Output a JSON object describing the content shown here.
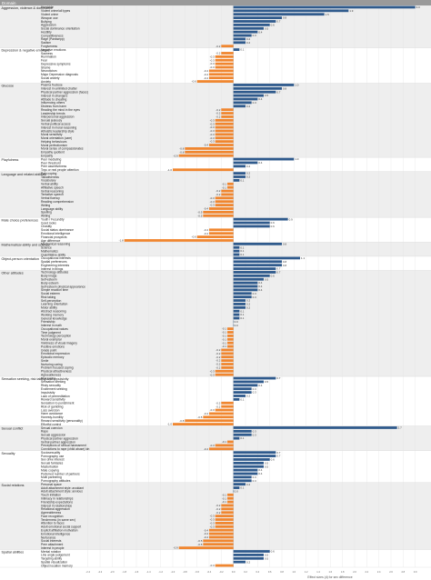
{
  "colors": {
    "positive": "#2f5a8c",
    "negative": "#f0862f",
    "header_bg": "#9a9a9a",
    "band_alt": "#eeeeee",
    "grid": "#e2e2e2",
    "text": "#222222",
    "value_text": "#333333"
  },
  "header": {
    "column_label": "Domain"
  },
  "chart_data": {
    "type": "bar",
    "orientation": "horizontal",
    "xlabel": "Effect sizes (d) for sex difference",
    "xlim": [
      -2.5,
      3.2
    ],
    "x_ticks": [
      "-2.4",
      "-2.2",
      "-2.0",
      "-1.8",
      "-1.6",
      "-1.4",
      "-1.2",
      "-1.0",
      "-0.8",
      "-0.6",
      "-0.4",
      "-0.2",
      "0.0",
      "0.2",
      "0.4",
      "0.6",
      "0.8",
      "1.0",
      "1.2",
      "1.4",
      "1.6",
      "1.8",
      "2.0",
      "2.2",
      "2.4",
      "2.6",
      "2.8",
      "3.0"
    ],
    "grid": true,
    "groups": [
      {
        "label": "Aggression, violence & dominance",
        "items": [
          {
            "label": "Homicide",
            "value": 3.0
          },
          {
            "label": "Violent crime/all types",
            "value": 1.9
          },
          {
            "label": "Violent crime",
            "value": 1.5
          },
          {
            "label": "Weapon use",
            "value": 0.8
          },
          {
            "label": "Bullying",
            "value": 0.7
          },
          {
            "label": "Aggression",
            "value": 0.6
          },
          {
            "label": "Social dominance orientation",
            "value": 0.5
          },
          {
            "label": "Hostility",
            "value": 0.4
          },
          {
            "label": "Competitiveness",
            "value": 0.3
          },
          {
            "label": "Rage (Panksepp)",
            "value": 0.2
          },
          {
            "label": "Sadism",
            "value": 0.2
          },
          {
            "label": "Forgiveness",
            "value": -0.2
          }
        ]
      },
      {
        "label": "Depression & negative emotions",
        "items": [
          {
            "label": "Negative emotions",
            "value": 0.1
          },
          {
            "label": "Sadness",
            "value": -0.2
          },
          {
            "label": "Rumination",
            "value": -0.3
          },
          {
            "label": "Fear",
            "value": -0.3
          },
          {
            "label": "Depressive symptoms",
            "value": -0.3
          },
          {
            "label": "Shame",
            "value": -0.3
          },
          {
            "label": "Neuroticism",
            "value": -0.4
          },
          {
            "label": "Major Depression diagnosis",
            "value": -0.4
          },
          {
            "label": "Social anxiety",
            "value": -0.4
          },
          {
            "label": "Anxiety",
            "value": -0.6
          }
        ]
      },
      {
        "label": "Glucose",
        "items": [
          {
            "label": "Plasma fructose",
            "value": 1.0
          },
          {
            "label": "Interest in unlimited chatter",
            "value": 0.8
          },
          {
            "label": "Physical partner aggression (faces)",
            "value": 0.7
          },
          {
            "label": "Interest in strangers",
            "value": 0.5
          },
          {
            "label": "Attitude to cheating",
            "value": 0.4
          },
          {
            "label": "Influencing others",
            "value": 0.3
          },
          {
            "label": "Distress from harm",
            "value": 0.2
          },
          {
            "label": "Reading the mind in the eyes",
            "value": -0.2
          },
          {
            "label": "Leadership trends",
            "value": -0.2
          },
          {
            "label": "Interpersonal aggression",
            "value": -0.2
          },
          {
            "label": "Sexual jealousy",
            "value": -0.3
          },
          {
            "label": "Verbal political access",
            "value": -0.3
          },
          {
            "label": "Interest in moral reasoning",
            "value": -0.3
          },
          {
            "label": "Altruistic leadership style",
            "value": -0.3
          },
          {
            "label": "Moral sensitivity",
            "value": -0.3
          },
          {
            "label": "Moral orientation (care)",
            "value": -0.3
          },
          {
            "label": "Helping behaviours",
            "value": -0.3
          },
          {
            "label": "Moral perfectionism",
            "value": -0.4
          },
          {
            "label": "Moral sense of compassionates",
            "value": -0.8
          },
          {
            "label": "Empathy quotient",
            "value": -0.8
          },
          {
            "label": "Empathy",
            "value": -0.9
          }
        ]
      },
      {
        "label": "Playfulness",
        "items": [
          {
            "label": "Peer mediating",
            "value": 1.0
          },
          {
            "label": "Peer threshold",
            "value": 0.4
          },
          {
            "label": "Peer assertiveness",
            "value": 0.2
          },
          {
            "label": "Toys or real people attention",
            "value": -1.0
          }
        ]
      },
      {
        "label": "Language and related abilities",
        "items": [
          {
            "label": "Pain coping",
            "value": 0.2
          },
          {
            "label": "Talkativeness",
            "value": 0.2
          },
          {
            "label": "Vocabulary",
            "value": 0.1
          },
          {
            "label": "Verbal ability",
            "value": -0.1
          },
          {
            "label": "Affiliative speech",
            "value": -0.1
          },
          {
            "label": "Verbal reasoning",
            "value": -0.2
          },
          {
            "label": "Tentative speech",
            "value": -0.2
          },
          {
            "label": "Verbal fluency",
            "value": -0.3
          },
          {
            "label": "Reading comprehension",
            "value": -0.3
          },
          {
            "label": "Writing",
            "value": -0.3
          },
          {
            "label": "Language ability",
            "value": -0.4
          },
          {
            "label": "Spelling",
            "value": -0.5
          },
          {
            "label": "Writing",
            "value": -0.5
          }
        ]
      },
      {
        "label": "Mate choice preferences",
        "items": [
          {
            "label": "Youth / Fecundity",
            "value": 0.9
          },
          {
            "label": "Good looks",
            "value": 0.6
          },
          {
            "label": "Chastity",
            "value": 0.6
          },
          {
            "label": "Social status dominance",
            "value": -0.4
          },
          {
            "label": "Emotional intelligence",
            "value": -0.4
          },
          {
            "label": "Financial prospects",
            "value": -0.6
          },
          {
            "label": "Age difference",
            "value": -1.8
          }
        ]
      },
      {
        "label": "Mathematical ability and science",
        "items": [
          {
            "label": "Mechanical reasoning",
            "value": 0.8
          },
          {
            "label": "Science",
            "value": 0.1
          },
          {
            "label": "Mathematics",
            "value": 0.1
          },
          {
            "label": "Quantitative ability",
            "value": 0.1
          }
        ]
      },
      {
        "label": "Object-person orientation",
        "items": [
          {
            "label": "Occupational interests",
            "value": 1.1
          },
          {
            "label": "Spatial preferences",
            "value": 0.8
          },
          {
            "label": "Engineering interests",
            "value": 0.8
          },
          {
            "label": "Interest in things",
            "value": 0.7
          }
        ]
      },
      {
        "label": "Other attitudes",
        "items": [
          {
            "label": "Technology attitudes",
            "value": 0.7
          },
          {
            "label": "Body image",
            "value": 0.6
          },
          {
            "label": "Self-esteem",
            "value": 0.5
          },
          {
            "label": "Body esteem",
            "value": 0.4
          },
          {
            "label": "Self-esteem physical appearance",
            "value": 0.4
          },
          {
            "label": "Simple reaction time",
            "value": 0.4
          },
          {
            "label": "Social esteem",
            "value": 0.3
          },
          {
            "label": "Risk taking",
            "value": 0.3
          },
          {
            "label": "Self-perception",
            "value": 0.2
          },
          {
            "label": "Learning orientation",
            "value": 0.2
          },
          {
            "label": "Motor ability",
            "value": 0.2
          },
          {
            "label": "Abstract reasoning",
            "value": 0.1
          },
          {
            "label": "Working memory",
            "value": 0.1
          },
          {
            "label": "General knowledge",
            "value": 0.1
          },
          {
            "label": "Friendship",
            "value": 0.0
          },
          {
            "label": "Interest in math",
            "value": 0.0
          },
          {
            "label": "Occupational values",
            "value": -0.1
          },
          {
            "label": "Time judgment",
            "value": -0.1
          },
          {
            "label": "Technology perception",
            "value": -0.1
          },
          {
            "label": "Moral exemplar",
            "value": -0.1
          },
          {
            "label": "Vividness of visual imagery",
            "value": -0.1
          },
          {
            "label": "Positive emotions",
            "value": -0.1
          },
          {
            "label": "Grade point",
            "value": -0.2
          },
          {
            "label": "Emotional expression",
            "value": -0.2
          },
          {
            "label": "Episodic memory",
            "value": -0.2
          },
          {
            "label": "Smile",
            "value": -0.2
          },
          {
            "label": "Nurturing caring",
            "value": -0.2
          },
          {
            "label": "Problem focused coping",
            "value": -0.2
          },
          {
            "label": "Physical attractiveness",
            "value": -0.3
          },
          {
            "label": "Agreeableness",
            "value": -0.3
          }
        ]
      },
      {
        "label": "Sensation seeking, risk taking and impulsivity",
        "items": [
          {
            "label": "Risk taking",
            "value": 0.7
          },
          {
            "label": "Sensation seeking",
            "value": 0.5
          },
          {
            "label": "Risky sexuality",
            "value": 0.4
          },
          {
            "label": "Excitement seeking",
            "value": 0.3
          },
          {
            "label": "Impulsivity",
            "value": 0.3
          },
          {
            "label": "Lack of premeditation",
            "value": 0.2
          },
          {
            "label": "Reward sensitivity",
            "value": 0.1
          },
          {
            "label": "Sensation to punishment",
            "value": -0.2
          },
          {
            "label": "Risk of gambling",
            "value": -0.2
          },
          {
            "label": "Loss aversion",
            "value": -0.3
          },
          {
            "label": "Harm avoidance",
            "value": -0.4
          },
          {
            "label": "Honesty-humility",
            "value": -0.5
          },
          {
            "label": "Reward sensitivity (personality)",
            "value": -0.8
          },
          {
            "label": "Effortful control",
            "value": -1.0
          }
        ]
      },
      {
        "label": "Sexual conflict",
        "items": [
          {
            "label": "Sexual coercion",
            "value": 2.7
          },
          {
            "label": "Rape",
            "value": 0.3
          },
          {
            "label": "Sexual aggression",
            "value": 0.3
          },
          {
            "label": "Physical partner aggression",
            "value": 0.1
          },
          {
            "label": "Verbal partner aggression",
            "value": -0.1
          },
          {
            "label": "Perceptions of sexual harassment",
            "value": -0.3
          },
          {
            "label": "Convictions to rape (child abuse) kin",
            "value": -0.4
          }
        ]
      },
      {
        "label": "Sexuality",
        "items": [
          {
            "label": "Sociosexuality",
            "value": 0.7
          },
          {
            "label": "Pornography use",
            "value": 0.7
          },
          {
            "label": "Sex drive interest",
            "value": 0.6
          },
          {
            "label": "Sexual fantasies",
            "value": 0.5
          },
          {
            "label": "Masturbation",
            "value": 0.5
          },
          {
            "label": "Mate copying",
            "value": 0.4
          },
          {
            "label": "Preferred number of partners",
            "value": 0.4
          },
          {
            "label": "Multi partnering",
            "value": 0.3
          },
          {
            "label": "Pornography attitudes",
            "value": 0.3
          }
        ]
      },
      {
        "label": "Social relations",
        "items": [
          {
            "label": "Personal space",
            "value": 0.2
          },
          {
            "label": "Adult attachment style: avoidant",
            "value": 0.1
          },
          {
            "label": "Adult attachment style: anxious",
            "value": 0.0
          },
          {
            "label": "Touch initiation",
            "value": -0.1
          },
          {
            "label": "Intimacy in relationships",
            "value": -0.1
          },
          {
            "label": "Friendship expectations",
            "value": -0.1
          },
          {
            "label": "Interest in relationships",
            "value": -0.2
          },
          {
            "label": "Relational aggression",
            "value": -0.2
          },
          {
            "label": "Agreeableness",
            "value": -0.2
          },
          {
            "label": "Face recognition",
            "value": -0.3
          },
          {
            "label": "Tenderness (in same sex)",
            "value": -0.3
          },
          {
            "label": "Attention to faces",
            "value": -0.3
          },
          {
            "label": "Adult emotional social support",
            "value": -0.3
          },
          {
            "label": "Explicit affiliation motivation",
            "value": -0.4
          },
          {
            "label": "Emotional intelligence",
            "value": -0.4
          },
          {
            "label": "Nurturance",
            "value": -0.4
          },
          {
            "label": "Social interests",
            "value": -0.5
          },
          {
            "label": "Peer attachment",
            "value": -0.5
          },
          {
            "label": "Interest in people",
            "value": -0.9
          }
        ]
      },
      {
        "label": "Spatial abilities",
        "items": [
          {
            "label": "Mental rotation",
            "value": 0.6
          },
          {
            "label": "Line angle judgement",
            "value": 0.5
          },
          {
            "label": "Targeting ability",
            "value": 0.5
          },
          {
            "label": "Spatial visualization",
            "value": 0.2
          },
          {
            "label": "Object location memory",
            "value": -0.3
          }
        ]
      }
    ]
  }
}
